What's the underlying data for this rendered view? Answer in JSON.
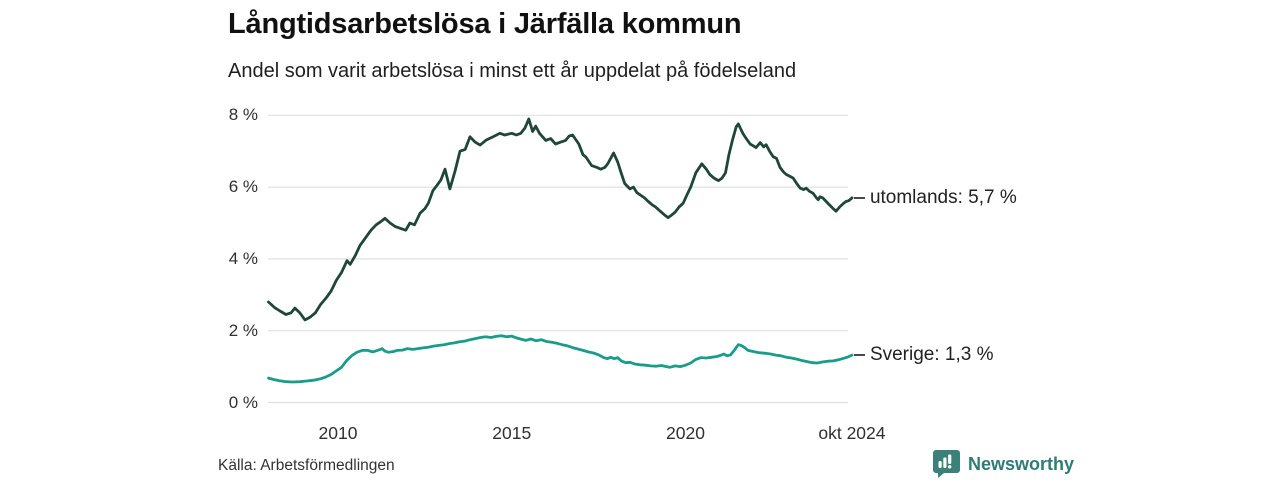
{
  "header": {
    "title": "Långtidsarbetslösa i Järfälla kommun",
    "subtitle": "Andel som varit arbetslösa i minst ett år uppdelat på födelseland"
  },
  "chart_data": {
    "type": "line",
    "title": "Långtidsarbetslösa i Järfälla kommun",
    "subtitle": "Andel som varit arbetslösa i minst ett år uppdelat på födelseland",
    "xlabel": "",
    "ylabel": "",
    "x_range": [
      2008.0,
      2024.83
    ],
    "ylim": [
      0,
      8
    ],
    "grid": "horizontal-only",
    "legend_position": "end-of-line-labels-right",
    "yticks": [
      {
        "value": 8,
        "label": "8 %"
      },
      {
        "value": 6,
        "label": "6 %"
      },
      {
        "value": 4,
        "label": "4 %"
      },
      {
        "value": 2,
        "label": "2 %"
      },
      {
        "value": 0,
        "label": "0 %"
      }
    ],
    "xticks": [
      {
        "value": 2010,
        "label": "2010"
      },
      {
        "value": 2015,
        "label": "2015"
      },
      {
        "value": 2020,
        "label": "2020"
      },
      {
        "value": 2024.79,
        "label": "okt 2024"
      }
    ],
    "series": [
      {
        "name": "utomlands",
        "label": "utomlands: 5,7 %",
        "last_value": 5.7,
        "color": "#1e4737",
        "points": [
          [
            2008.0,
            2.8
          ],
          [
            2008.17,
            2.65
          ],
          [
            2008.33,
            2.55
          ],
          [
            2008.5,
            2.45
          ],
          [
            2008.65,
            2.5
          ],
          [
            2008.76,
            2.63
          ],
          [
            2008.9,
            2.5
          ],
          [
            2009.05,
            2.3
          ],
          [
            2009.2,
            2.38
          ],
          [
            2009.35,
            2.5
          ],
          [
            2009.5,
            2.73
          ],
          [
            2009.65,
            2.9
          ],
          [
            2009.8,
            3.1
          ],
          [
            2009.95,
            3.4
          ],
          [
            2010.1,
            3.62
          ],
          [
            2010.26,
            3.95
          ],
          [
            2010.35,
            3.85
          ],
          [
            2010.5,
            4.1
          ],
          [
            2010.63,
            4.37
          ],
          [
            2010.8,
            4.6
          ],
          [
            2010.95,
            4.8
          ],
          [
            2011.1,
            4.95
          ],
          [
            2011.25,
            5.05
          ],
          [
            2011.35,
            5.13
          ],
          [
            2011.5,
            5.0
          ],
          [
            2011.65,
            4.9
          ],
          [
            2011.8,
            4.85
          ],
          [
            2011.95,
            4.8
          ],
          [
            2012.07,
            5.0
          ],
          [
            2012.2,
            4.95
          ],
          [
            2012.36,
            5.27
          ],
          [
            2012.5,
            5.4
          ],
          [
            2012.6,
            5.55
          ],
          [
            2012.73,
            5.9
          ],
          [
            2012.85,
            6.05
          ],
          [
            2012.96,
            6.2
          ],
          [
            2013.08,
            6.5
          ],
          [
            2013.22,
            5.95
          ],
          [
            2013.37,
            6.45
          ],
          [
            2013.51,
            7.0
          ],
          [
            2013.66,
            7.05
          ],
          [
            2013.8,
            7.4
          ],
          [
            2013.94,
            7.26
          ],
          [
            2014.09,
            7.17
          ],
          [
            2014.25,
            7.3
          ],
          [
            2014.37,
            7.36
          ],
          [
            2014.5,
            7.42
          ],
          [
            2014.66,
            7.5
          ],
          [
            2014.8,
            7.45
          ],
          [
            2015.0,
            7.5
          ],
          [
            2015.13,
            7.45
          ],
          [
            2015.26,
            7.5
          ],
          [
            2015.38,
            7.65
          ],
          [
            2015.49,
            7.9
          ],
          [
            2015.6,
            7.55
          ],
          [
            2015.69,
            7.7
          ],
          [
            2015.8,
            7.5
          ],
          [
            2015.98,
            7.3
          ],
          [
            2016.12,
            7.35
          ],
          [
            2016.26,
            7.2
          ],
          [
            2016.4,
            7.25
          ],
          [
            2016.55,
            7.3
          ],
          [
            2016.65,
            7.42
          ],
          [
            2016.75,
            7.45
          ],
          [
            2016.93,
            7.2
          ],
          [
            2017.05,
            6.9
          ],
          [
            2017.13,
            6.84
          ],
          [
            2017.3,
            6.6
          ],
          [
            2017.45,
            6.55
          ],
          [
            2017.56,
            6.5
          ],
          [
            2017.68,
            6.55
          ],
          [
            2017.76,
            6.65
          ],
          [
            2017.93,
            6.95
          ],
          [
            2018.05,
            6.7
          ],
          [
            2018.13,
            6.45
          ],
          [
            2018.25,
            6.1
          ],
          [
            2018.4,
            5.95
          ],
          [
            2018.5,
            6.0
          ],
          [
            2018.6,
            5.85
          ],
          [
            2018.7,
            5.78
          ],
          [
            2018.82,
            5.7
          ],
          [
            2018.93,
            5.6
          ],
          [
            2019.05,
            5.5
          ],
          [
            2019.13,
            5.45
          ],
          [
            2019.25,
            5.35
          ],
          [
            2019.4,
            5.22
          ],
          [
            2019.5,
            5.15
          ],
          [
            2019.6,
            5.22
          ],
          [
            2019.7,
            5.3
          ],
          [
            2019.82,
            5.45
          ],
          [
            2019.93,
            5.55
          ],
          [
            2020.05,
            5.8
          ],
          [
            2020.15,
            6.0
          ],
          [
            2020.3,
            6.4
          ],
          [
            2020.47,
            6.65
          ],
          [
            2020.6,
            6.5
          ],
          [
            2020.7,
            6.35
          ],
          [
            2020.82,
            6.25
          ],
          [
            2020.95,
            6.18
          ],
          [
            2021.05,
            6.25
          ],
          [
            2021.15,
            6.4
          ],
          [
            2021.25,
            6.9
          ],
          [
            2021.35,
            7.3
          ],
          [
            2021.46,
            7.68
          ],
          [
            2021.52,
            7.76
          ],
          [
            2021.6,
            7.6
          ],
          [
            2021.66,
            7.48
          ],
          [
            2021.75,
            7.35
          ],
          [
            2021.86,
            7.2
          ],
          [
            2021.95,
            7.15
          ],
          [
            2022.03,
            7.1
          ],
          [
            2022.15,
            7.24
          ],
          [
            2022.25,
            7.12
          ],
          [
            2022.32,
            7.18
          ],
          [
            2022.42,
            7.0
          ],
          [
            2022.52,
            6.85
          ],
          [
            2022.62,
            6.8
          ],
          [
            2022.72,
            6.55
          ],
          [
            2022.82,
            6.42
          ],
          [
            2022.9,
            6.35
          ],
          [
            2023.0,
            6.3
          ],
          [
            2023.1,
            6.25
          ],
          [
            2023.2,
            6.1
          ],
          [
            2023.3,
            5.97
          ],
          [
            2023.4,
            5.93
          ],
          [
            2023.47,
            5.97
          ],
          [
            2023.57,
            5.88
          ],
          [
            2023.67,
            5.83
          ],
          [
            2023.77,
            5.7
          ],
          [
            2023.82,
            5.65
          ],
          [
            2023.87,
            5.73
          ],
          [
            2023.95,
            5.7
          ],
          [
            2024.05,
            5.6
          ],
          [
            2024.15,
            5.5
          ],
          [
            2024.25,
            5.4
          ],
          [
            2024.33,
            5.33
          ],
          [
            2024.45,
            5.46
          ],
          [
            2024.55,
            5.55
          ],
          [
            2024.62,
            5.6
          ],
          [
            2024.7,
            5.62
          ],
          [
            2024.79,
            5.7
          ]
        ]
      },
      {
        "name": "Sverige",
        "label": "Sverige: 1,3 %",
        "last_value": 1.3,
        "color": "#199c8b",
        "points": [
          [
            2008.0,
            0.68
          ],
          [
            2008.15,
            0.64
          ],
          [
            2008.3,
            0.61
          ],
          [
            2008.5,
            0.58
          ],
          [
            2008.7,
            0.57
          ],
          [
            2008.9,
            0.58
          ],
          [
            2009.1,
            0.6
          ],
          [
            2009.3,
            0.62
          ],
          [
            2009.5,
            0.66
          ],
          [
            2009.65,
            0.71
          ],
          [
            2009.8,
            0.78
          ],
          [
            2009.95,
            0.88
          ],
          [
            2010.1,
            0.98
          ],
          [
            2010.25,
            1.17
          ],
          [
            2010.4,
            1.31
          ],
          [
            2010.55,
            1.4
          ],
          [
            2010.7,
            1.45
          ],
          [
            2010.85,
            1.45
          ],
          [
            2011.0,
            1.41
          ],
          [
            2011.1,
            1.44
          ],
          [
            2011.2,
            1.47
          ],
          [
            2011.27,
            1.5
          ],
          [
            2011.35,
            1.43
          ],
          [
            2011.45,
            1.4
          ],
          [
            2011.6,
            1.42
          ],
          [
            2011.7,
            1.45
          ],
          [
            2011.85,
            1.46
          ],
          [
            2012.0,
            1.5
          ],
          [
            2012.15,
            1.48
          ],
          [
            2012.3,
            1.5
          ],
          [
            2012.45,
            1.52
          ],
          [
            2012.6,
            1.54
          ],
          [
            2012.75,
            1.57
          ],
          [
            2012.9,
            1.59
          ],
          [
            2013.05,
            1.61
          ],
          [
            2013.2,
            1.64
          ],
          [
            2013.35,
            1.66
          ],
          [
            2013.5,
            1.69
          ],
          [
            2013.65,
            1.71
          ],
          [
            2013.8,
            1.75
          ],
          [
            2013.95,
            1.78
          ],
          [
            2014.1,
            1.81
          ],
          [
            2014.25,
            1.83
          ],
          [
            2014.4,
            1.81
          ],
          [
            2014.55,
            1.84
          ],
          [
            2014.7,
            1.86
          ],
          [
            2014.85,
            1.83
          ],
          [
            2015.0,
            1.85
          ],
          [
            2015.1,
            1.81
          ],
          [
            2015.25,
            1.77
          ],
          [
            2015.4,
            1.73
          ],
          [
            2015.55,
            1.77
          ],
          [
            2015.7,
            1.72
          ],
          [
            2015.85,
            1.75
          ],
          [
            2016.0,
            1.7
          ],
          [
            2016.15,
            1.68
          ],
          [
            2016.3,
            1.65
          ],
          [
            2016.45,
            1.61
          ],
          [
            2016.6,
            1.58
          ],
          [
            2016.75,
            1.53
          ],
          [
            2016.9,
            1.49
          ],
          [
            2017.05,
            1.45
          ],
          [
            2017.2,
            1.41
          ],
          [
            2017.35,
            1.38
          ],
          [
            2017.5,
            1.33
          ],
          [
            2017.65,
            1.25
          ],
          [
            2017.75,
            1.22
          ],
          [
            2017.85,
            1.26
          ],
          [
            2017.95,
            1.22
          ],
          [
            2018.05,
            1.25
          ],
          [
            2018.15,
            1.16
          ],
          [
            2018.28,
            1.11
          ],
          [
            2018.4,
            1.12
          ],
          [
            2018.55,
            1.07
          ],
          [
            2018.7,
            1.05
          ],
          [
            2018.85,
            1.04
          ],
          [
            2019.0,
            1.02
          ],
          [
            2019.15,
            1.01
          ],
          [
            2019.3,
            1.03
          ],
          [
            2019.45,
            1.0
          ],
          [
            2019.55,
            0.98
          ],
          [
            2019.7,
            1.02
          ],
          [
            2019.85,
            1.0
          ],
          [
            2020.0,
            1.04
          ],
          [
            2020.15,
            1.1
          ],
          [
            2020.3,
            1.2
          ],
          [
            2020.45,
            1.25
          ],
          [
            2020.6,
            1.24
          ],
          [
            2020.75,
            1.26
          ],
          [
            2020.9,
            1.28
          ],
          [
            2021.0,
            1.31
          ],
          [
            2021.1,
            1.35
          ],
          [
            2021.2,
            1.3
          ],
          [
            2021.3,
            1.33
          ],
          [
            2021.4,
            1.45
          ],
          [
            2021.52,
            1.61
          ],
          [
            2021.6,
            1.59
          ],
          [
            2021.7,
            1.53
          ],
          [
            2021.8,
            1.45
          ],
          [
            2021.95,
            1.42
          ],
          [
            2022.1,
            1.39
          ],
          [
            2022.3,
            1.37
          ],
          [
            2022.45,
            1.35
          ],
          [
            2022.6,
            1.32
          ],
          [
            2022.75,
            1.3
          ],
          [
            2022.9,
            1.26
          ],
          [
            2023.05,
            1.24
          ],
          [
            2023.2,
            1.21
          ],
          [
            2023.35,
            1.17
          ],
          [
            2023.5,
            1.14
          ],
          [
            2023.65,
            1.11
          ],
          [
            2023.8,
            1.1
          ],
          [
            2023.95,
            1.13
          ],
          [
            2024.1,
            1.15
          ],
          [
            2024.25,
            1.16
          ],
          [
            2024.4,
            1.19
          ],
          [
            2024.55,
            1.23
          ],
          [
            2024.68,
            1.27
          ],
          [
            2024.79,
            1.32
          ]
        ]
      }
    ]
  },
  "footer": {
    "source": "Källa: Arbetsförmedlingen",
    "brand": "Newsworthy"
  },
  "colors": {
    "series_utomlands": "#1e4737",
    "series_sverige": "#199c8b",
    "gridline": "#e0e0e0",
    "brand_teal": "#2e7d74",
    "brand_icon": "#3b8177"
  }
}
